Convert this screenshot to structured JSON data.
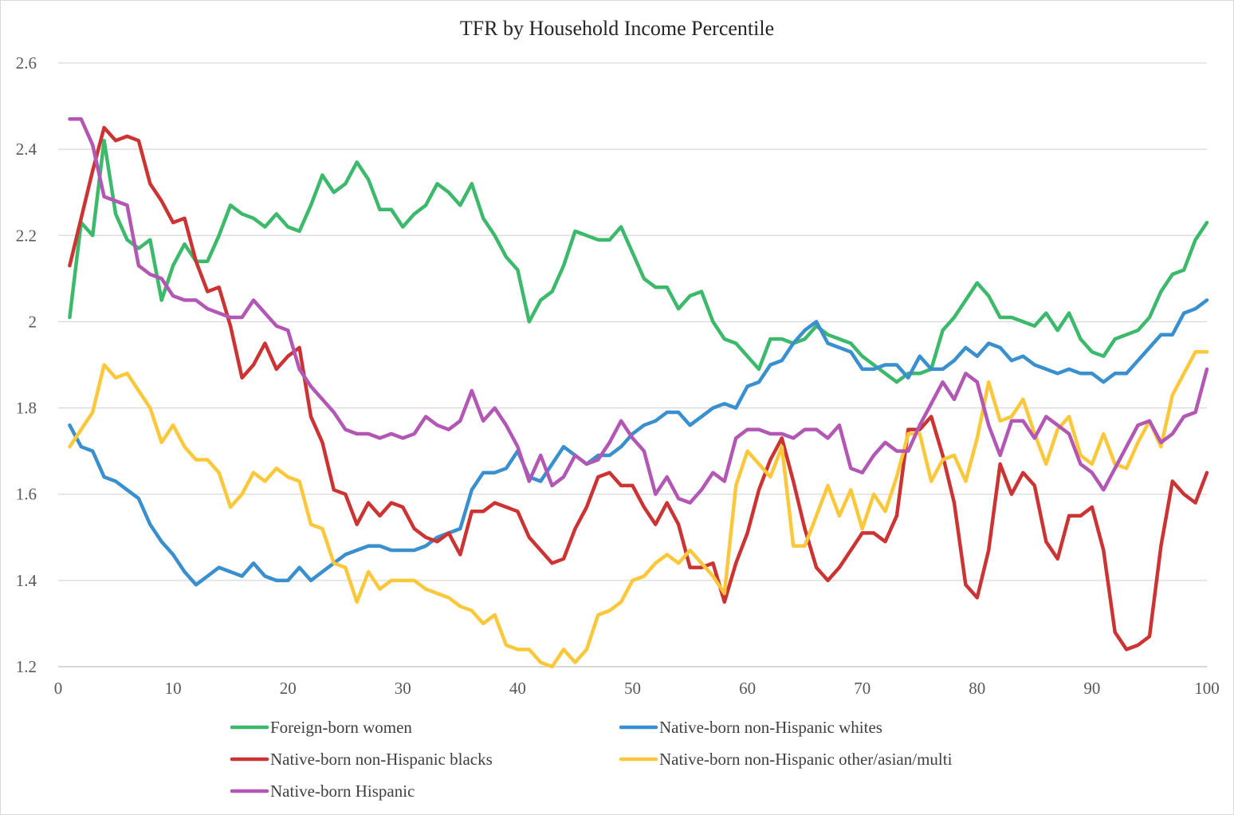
{
  "chart_data": {
    "type": "line",
    "title": "TFR by Household Income Percentile",
    "xlabel": "",
    "ylabel": "",
    "xlim": [
      0,
      100
    ],
    "ylim": [
      1.2,
      2.6
    ],
    "x_ticks": [
      0,
      10,
      20,
      30,
      40,
      50,
      60,
      70,
      80,
      90,
      100
    ],
    "y_ticks": [
      1.2,
      1.4,
      1.6,
      1.8,
      2,
      2.2,
      2.4,
      2.6
    ],
    "grid": "horizontal",
    "legend": "bottom",
    "series": [
      {
        "name": "Foreign-born women",
        "color": "#3cb96a",
        "values": [
          2.01,
          2.23,
          2.2,
          2.42,
          2.25,
          2.19,
          2.17,
          2.19,
          2.05,
          2.13,
          2.18,
          2.14,
          2.14,
          2.2,
          2.27,
          2.25,
          2.24,
          2.22,
          2.25,
          2.22,
          2.21,
          2.27,
          2.34,
          2.3,
          2.32,
          2.37,
          2.33,
          2.26,
          2.26,
          2.22,
          2.25,
          2.27,
          2.32,
          2.3,
          2.27,
          2.32,
          2.24,
          2.2,
          2.15,
          2.12,
          2.0,
          2.05,
          2.07,
          2.13,
          2.21,
          2.2,
          2.19,
          2.19,
          2.22,
          2.16,
          2.1,
          2.08,
          2.08,
          2.03,
          2.06,
          2.07,
          2.0,
          1.96,
          1.95,
          1.92,
          1.89,
          1.96,
          1.96,
          1.95,
          1.96,
          1.99,
          1.97,
          1.96,
          1.95,
          1.92,
          1.9,
          1.88,
          1.86,
          1.88,
          1.88,
          1.89,
          1.98,
          2.01,
          2.05,
          2.09,
          2.06,
          2.01,
          2.01,
          2.0,
          1.99,
          2.02,
          1.98,
          2.02,
          1.96,
          1.93,
          1.92,
          1.96,
          1.97,
          1.98,
          2.01,
          2.07,
          2.11,
          2.12,
          2.19,
          2.23
        ]
      },
      {
        "name": "Native-born non-Hispanic whites",
        "color": "#3a8fce",
        "values": [
          1.76,
          1.71,
          1.7,
          1.64,
          1.63,
          1.61,
          1.59,
          1.53,
          1.49,
          1.46,
          1.42,
          1.39,
          1.41,
          1.43,
          1.42,
          1.41,
          1.44,
          1.41,
          1.4,
          1.4,
          1.43,
          1.4,
          1.42,
          1.44,
          1.46,
          1.47,
          1.48,
          1.48,
          1.47,
          1.47,
          1.47,
          1.48,
          1.5,
          1.51,
          1.52,
          1.61,
          1.65,
          1.65,
          1.66,
          1.7,
          1.64,
          1.63,
          1.67,
          1.71,
          1.69,
          1.67,
          1.69,
          1.69,
          1.71,
          1.74,
          1.76,
          1.77,
          1.79,
          1.79,
          1.76,
          1.78,
          1.8,
          1.81,
          1.8,
          1.85,
          1.86,
          1.9,
          1.91,
          1.95,
          1.98,
          2.0,
          1.95,
          1.94,
          1.93,
          1.89,
          1.89,
          1.9,
          1.9,
          1.87,
          1.92,
          1.89,
          1.89,
          1.91,
          1.94,
          1.92,
          1.95,
          1.94,
          1.91,
          1.92,
          1.9,
          1.89,
          1.88,
          1.89,
          1.88,
          1.88,
          1.86,
          1.88,
          1.88,
          1.91,
          1.94,
          1.97,
          1.97,
          2.02,
          2.03,
          2.05
        ]
      },
      {
        "name": "Native-born non-Hispanic blacks",
        "color": "#cc3434",
        "values": [
          2.13,
          2.24,
          2.35,
          2.45,
          2.42,
          2.43,
          2.42,
          2.32,
          2.28,
          2.23,
          2.24,
          2.14,
          2.07,
          2.08,
          1.99,
          1.87,
          1.9,
          1.95,
          1.89,
          1.92,
          1.94,
          1.78,
          1.72,
          1.61,
          1.6,
          1.53,
          1.58,
          1.55,
          1.58,
          1.57,
          1.52,
          1.5,
          1.49,
          1.51,
          1.46,
          1.56,
          1.56,
          1.58,
          1.57,
          1.56,
          1.5,
          1.47,
          1.44,
          1.45,
          1.52,
          1.57,
          1.64,
          1.65,
          1.62,
          1.62,
          1.57,
          1.53,
          1.58,
          1.53,
          1.43,
          1.43,
          1.44,
          1.35,
          1.44,
          1.51,
          1.61,
          1.68,
          1.73,
          1.63,
          1.52,
          1.43,
          1.4,
          1.43,
          1.47,
          1.51,
          1.51,
          1.49,
          1.55,
          1.75,
          1.75,
          1.78,
          1.69,
          1.58,
          1.39,
          1.36,
          1.47,
          1.67,
          1.6,
          1.65,
          1.62,
          1.49,
          1.45,
          1.55,
          1.55,
          1.57,
          1.47,
          1.28,
          1.24,
          1.25,
          1.27,
          1.48,
          1.63,
          1.6,
          1.58,
          1.65
        ]
      },
      {
        "name": "Native-born non-Hispanic other/asian/multi",
        "color": "#fbc73b",
        "values": [
          1.71,
          1.75,
          1.79,
          1.9,
          1.87,
          1.88,
          1.84,
          1.8,
          1.72,
          1.76,
          1.71,
          1.68,
          1.68,
          1.65,
          1.57,
          1.6,
          1.65,
          1.63,
          1.66,
          1.64,
          1.63,
          1.53,
          1.52,
          1.44,
          1.43,
          1.35,
          1.42,
          1.38,
          1.4,
          1.4,
          1.4,
          1.38,
          1.37,
          1.36,
          1.34,
          1.33,
          1.3,
          1.32,
          1.25,
          1.24,
          1.24,
          1.21,
          1.2,
          1.24,
          1.21,
          1.24,
          1.32,
          1.33,
          1.35,
          1.4,
          1.41,
          1.44,
          1.46,
          1.44,
          1.47,
          1.44,
          1.41,
          1.37,
          1.62,
          1.7,
          1.67,
          1.64,
          1.71,
          1.48,
          1.48,
          1.55,
          1.62,
          1.55,
          1.61,
          1.52,
          1.6,
          1.56,
          1.64,
          1.74,
          1.74,
          1.63,
          1.68,
          1.69,
          1.63,
          1.73,
          1.86,
          1.77,
          1.78,
          1.82,
          1.74,
          1.67,
          1.75,
          1.78,
          1.69,
          1.67,
          1.74,
          1.67,
          1.66,
          1.72,
          1.77,
          1.71,
          1.83,
          1.88,
          1.93,
          1.93
        ]
      },
      {
        "name": "Native-born Hispanic",
        "color": "#b357b5",
        "values": [
          2.47,
          2.47,
          2.41,
          2.29,
          2.28,
          2.27,
          2.13,
          2.11,
          2.1,
          2.06,
          2.05,
          2.05,
          2.03,
          2.02,
          2.01,
          2.01,
          2.05,
          2.02,
          1.99,
          1.98,
          1.89,
          1.85,
          1.82,
          1.79,
          1.75,
          1.74,
          1.74,
          1.73,
          1.74,
          1.73,
          1.74,
          1.78,
          1.76,
          1.75,
          1.77,
          1.84,
          1.77,
          1.8,
          1.76,
          1.71,
          1.63,
          1.69,
          1.62,
          1.64,
          1.69,
          1.67,
          1.68,
          1.72,
          1.77,
          1.73,
          1.7,
          1.6,
          1.64,
          1.59,
          1.58,
          1.61,
          1.65,
          1.63,
          1.73,
          1.75,
          1.75,
          1.74,
          1.74,
          1.73,
          1.75,
          1.75,
          1.73,
          1.76,
          1.66,
          1.65,
          1.69,
          1.72,
          1.7,
          1.7,
          1.76,
          1.81,
          1.86,
          1.82,
          1.88,
          1.86,
          1.76,
          1.69,
          1.77,
          1.77,
          1.73,
          1.78,
          1.76,
          1.74,
          1.67,
          1.65,
          1.61,
          1.66,
          1.71,
          1.76,
          1.77,
          1.72,
          1.74,
          1.78,
          1.79,
          1.89
        ]
      }
    ]
  }
}
